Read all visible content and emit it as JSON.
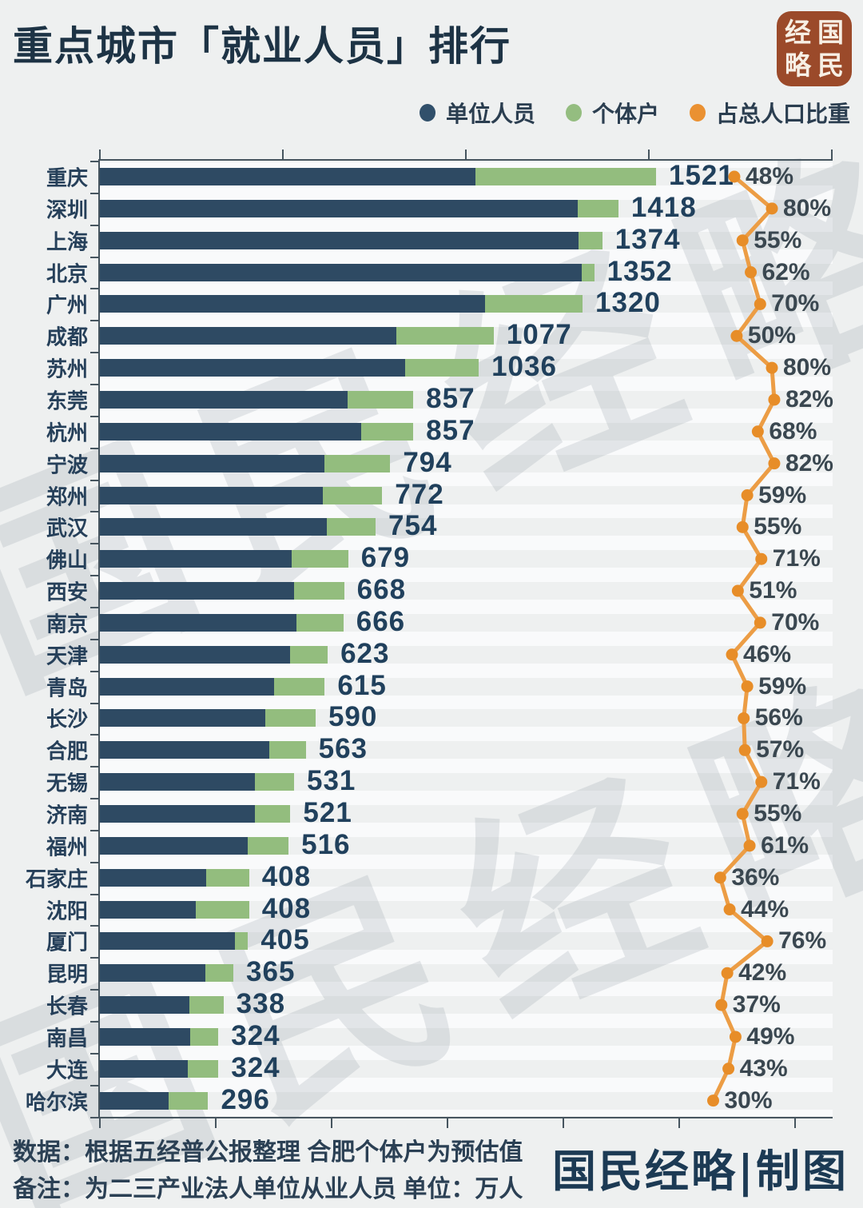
{
  "title": "重点城市「就业人员」排行",
  "logo": {
    "name": "国民经略",
    "bg": "#9b4a2a",
    "chars": [
      "经",
      "国",
      "略",
      "民"
    ]
  },
  "legend": {
    "items": [
      {
        "label": "单位人员",
        "color": "#31506b"
      },
      {
        "label": "个体户",
        "color": "#94bd80"
      },
      {
        "label": "占总人口比重",
        "color": "#ea9132"
      }
    ]
  },
  "chart_data": {
    "type": "bar",
    "subtype": "horizontal-stacked-with-line",
    "title": "重点城市「就业人员」排行",
    "unit": "万人",
    "bar_split_estimated": true,
    "categories": [
      "重庆",
      "深圳",
      "上海",
      "北京",
      "广州",
      "成都",
      "苏州",
      "东莞",
      "杭州",
      "宁波",
      "郑州",
      "武汉",
      "佛山",
      "西安",
      "南京",
      "天津",
      "青岛",
      "长沙",
      "合肥",
      "无锡",
      "济南",
      "福州",
      "石家庄",
      "沈阳",
      "厦门",
      "昆明",
      "长春",
      "南昌",
      "大连",
      "哈尔滨"
    ],
    "totals": [
      1521,
      1418,
      1374,
      1352,
      1320,
      1077,
      1036,
      857,
      857,
      794,
      772,
      754,
      679,
      668,
      666,
      623,
      615,
      590,
      563,
      531,
      521,
      516,
      408,
      408,
      405,
      365,
      338,
      324,
      324,
      296
    ],
    "series": [
      {
        "name": "单位人员",
        "type": "bar",
        "color": "#2e4a63",
        "values": [
          1027,
          1307,
          1308,
          1317,
          1053,
          811,
          835,
          677,
          715,
          615,
          610,
          621,
          524,
          530,
          537,
          520,
          476,
          452,
          463,
          424,
          424,
          404,
          291,
          262,
          369,
          288,
          244,
          248,
          240,
          188
        ]
      },
      {
        "name": "个体户",
        "type": "bar",
        "color": "#93bd7e",
        "values": [
          494,
          111,
          66,
          35,
          267,
          266,
          201,
          180,
          142,
          179,
          162,
          133,
          155,
          138,
          129,
          103,
          139,
          138,
          100,
          107,
          97,
          112,
          117,
          146,
          36,
          77,
          94,
          76,
          84,
          108
        ]
      },
      {
        "name": "占总人口比重",
        "type": "line",
        "color": "#e78d28",
        "unit": "%",
        "values": [
          48,
          80,
          55,
          62,
          70,
          50,
          80,
          82,
          68,
          82,
          59,
          55,
          71,
          51,
          70,
          46,
          59,
          56,
          57,
          71,
          55,
          61,
          36,
          44,
          76,
          42,
          37,
          49,
          43,
          30
        ]
      }
    ],
    "xaxis": {
      "range": [
        0,
        2000
      ],
      "ticks": [
        0,
        500,
        1000,
        1500,
        2000
      ],
      "tick_labels_visible": false
    },
    "legend_position": "top-right",
    "grid": false
  },
  "watermark": {
    "text": "国民经略"
  },
  "footer": {
    "line1": "数据：根据五经普公报整理 合肥个体户为预估值",
    "line2": "备注：为二三产业法人单位从业人员 单位：万人",
    "credit": "国民经略|制图"
  },
  "colors": {
    "background": "#eef0f0",
    "row_stripe": "#f9fafb",
    "bar_unit": "#2e4a63",
    "bar_individual": "#93bd7e",
    "line": "#ec9d45",
    "dot": "#e78d28",
    "title_text": "#1d3345",
    "value_text": "#20405c",
    "percent_text": "#3a4750",
    "axis": "#46555f",
    "logo_bg": "#9b4a2a"
  }
}
